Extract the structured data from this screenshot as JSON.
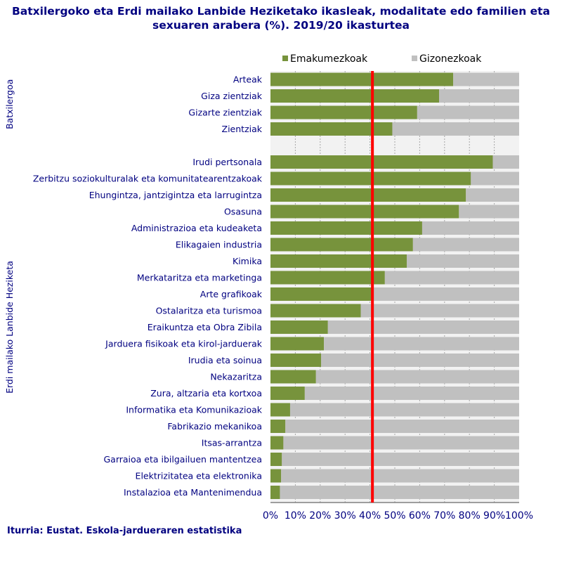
{
  "title": "Batxilergoko eta Erdi mailako Lanbide Heziketako ikasleak, modalitate edo familien eta sexuaren arabera (%). 2019/20 ikasturtea",
  "source": "Iturria: Eustat. Eskola-jardueraren estatistika",
  "colors": {
    "women": "#77933c",
    "men": "#c0c0c0",
    "reference_line": "#ff0000",
    "text": "#000080"
  },
  "chart_data": {
    "type": "bar",
    "orientation": "horizontal",
    "stacked": "percent",
    "legend_position": "top",
    "grid": true,
    "xlim": [
      0,
      100
    ],
    "x_ticks": [
      "0%",
      "10%",
      "20%",
      "30%",
      "40%",
      "50%",
      "60%",
      "70%",
      "80%",
      "90%",
      "100%"
    ],
    "reference_line": 41,
    "groups": [
      {
        "name": "Batxilergoa",
        "categories": [
          "Arteak",
          "Giza zientziak",
          "Gizarte zientziak",
          "Zientziak"
        ],
        "women": [
          73.5,
          67.8,
          59.0,
          49.0
        ],
        "men": [
          26.5,
          32.2,
          41.0,
          51.0
        ]
      },
      {
        "name": "Erdi mailako Lanbide Heziketa",
        "categories": [
          "Irudi pertsonala",
          "Zerbitzu soziokulturalak eta komunitatearentzakoak",
          "Ehungintza, jantzigintza eta larrugintza",
          "Osasuna",
          "Administrazioa eta kudeaketa",
          "Elikagaien industria",
          "Kimika",
          "Merkataritza eta marketinga",
          "Arte grafikoak",
          "Ostalaritza eta turismoa",
          "Eraikuntza eta Obra Zibila",
          "Jarduera fisikoak eta kirol-jarduerak",
          "Irudia eta soinua",
          "Nekazaritza",
          "Zura, altzaria eta kortxoa",
          "Informatika eta Komunikazioak",
          "Fabrikazio mekanikoa",
          "Itsas-arrantza",
          "Garraioa eta ibilgailuen mantentzea",
          "Elektrizitatea eta elektronika",
          "Instalazioa eta Mantenimendua"
        ],
        "women": [
          89.4,
          80.6,
          78.6,
          75.8,
          61.0,
          57.3,
          54.8,
          46.0,
          41.0,
          36.3,
          23.1,
          21.5,
          20.4,
          18.3,
          13.8,
          7.9,
          6.0,
          5.2,
          4.6,
          4.3,
          3.8
        ],
        "men": [
          10.6,
          19.4,
          21.4,
          24.2,
          39.0,
          42.7,
          45.2,
          54.0,
          59.0,
          63.7,
          76.9,
          78.5,
          79.6,
          81.7,
          86.2,
          92.1,
          94.0,
          94.8,
          95.4,
          95.7,
          96.2
        ]
      }
    ],
    "series": [
      {
        "name": "Emakumezkoak"
      },
      {
        "name": "Gizonezkoak"
      }
    ]
  }
}
